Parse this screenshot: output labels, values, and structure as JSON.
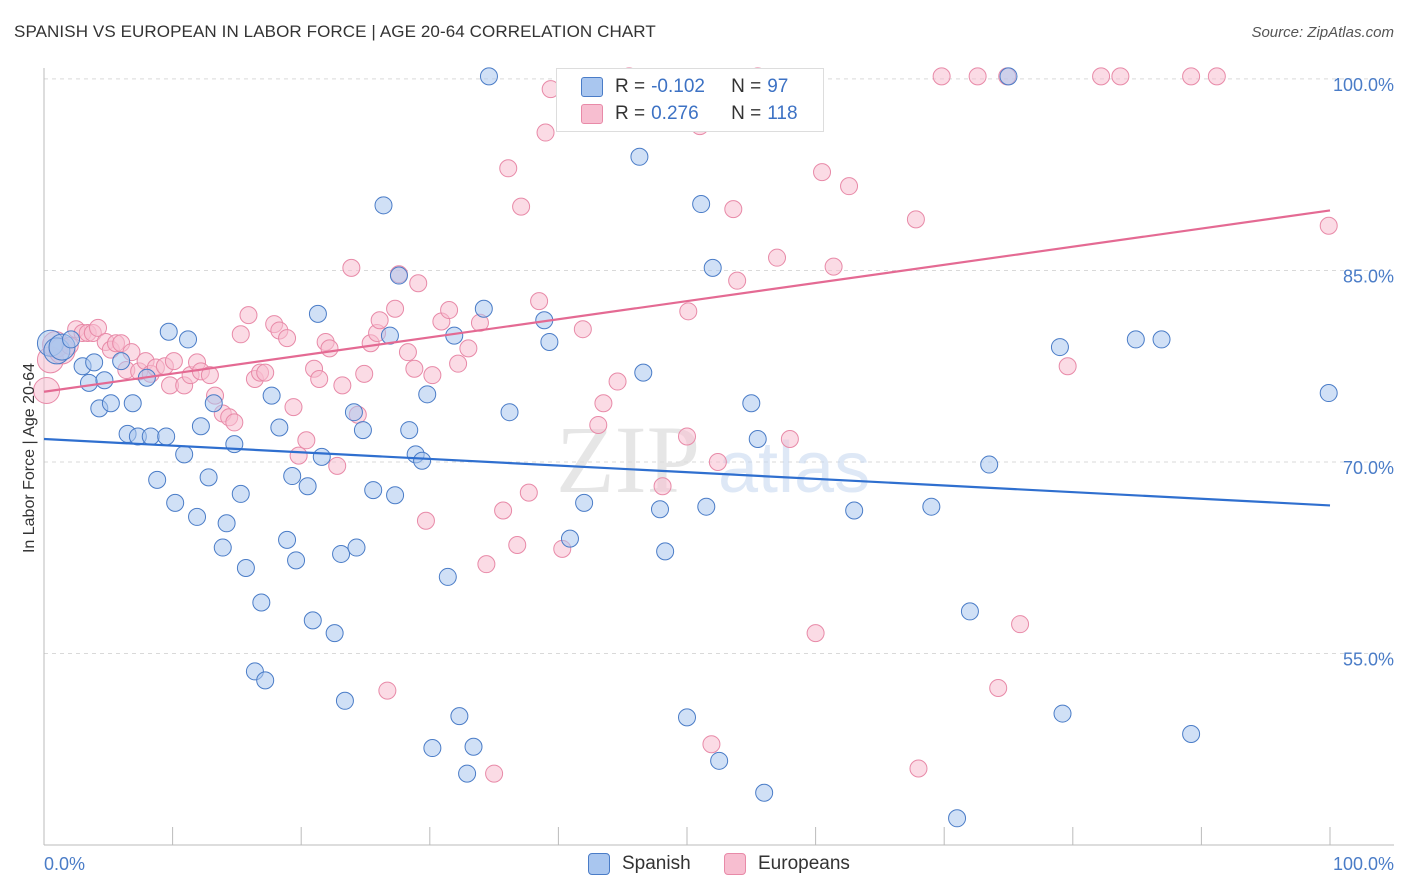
{
  "title": "SPANISH VS EUROPEAN IN LABOR FORCE | AGE 20-64 CORRELATION CHART",
  "source": "Source: ZipAtlas.com",
  "legend": {
    "r_label": "R =",
    "n_label": "N =",
    "spanish": {
      "r": "-0.102",
      "n": "97"
    },
    "europeans": {
      "r": "0.276",
      "n": "118"
    }
  },
  "bottom_legend": {
    "spanish": "Spanish",
    "europeans": "Europeans"
  },
  "colors": {
    "spanish_fill": "#a9c6ef",
    "spanish_stroke": "#4a7cc7",
    "spanish_line": "#2f6fcf",
    "europeans_fill": "#f7bed0",
    "europeans_stroke": "#e88aa8",
    "europeans_line": "#e46a93",
    "grid": "#d9d9d9",
    "tick_text": "#4a7cc7"
  },
  "chart_data": {
    "type": "scatter",
    "title": "SPANISH VS EUROPEAN IN LABOR FORCE | AGE 20-64 CORRELATION CHART",
    "xlabel": "",
    "ylabel": "In Labor Force | Age 20-64",
    "xlim": [
      0,
      100
    ],
    "ylim": [
      40,
      101
    ],
    "x_tick_labels": [
      "0.0%",
      "100.0%"
    ],
    "y_ticks": [
      55,
      70,
      85,
      100
    ],
    "y_tick_labels": [
      "55.0%",
      "70.0%",
      "85.0%",
      "100.0%"
    ],
    "grid": true,
    "series": [
      {
        "name": "Spanish",
        "trend": {
          "x": [
            0,
            100
          ],
          "y": [
            71.8,
            66.6
          ]
        },
        "points": [
          [
            0.5,
            79.3
          ],
          [
            1.0,
            78.7
          ],
          [
            1.4,
            79.0
          ],
          [
            2.1,
            79.6
          ],
          [
            3.0,
            77.5
          ],
          [
            3.5,
            76.2
          ],
          [
            3.9,
            77.8
          ],
          [
            4.3,
            74.2
          ],
          [
            4.7,
            76.4
          ],
          [
            5.2,
            74.6
          ],
          [
            6.0,
            77.9
          ],
          [
            6.5,
            72.2
          ],
          [
            6.9,
            74.6
          ],
          [
            7.3,
            72.0
          ],
          [
            8.0,
            76.6
          ],
          [
            8.3,
            72.0
          ],
          [
            8.8,
            68.6
          ],
          [
            9.5,
            72.0
          ],
          [
            9.7,
            80.2
          ],
          [
            10.2,
            66.8
          ],
          [
            10.9,
            70.6
          ],
          [
            11.2,
            79.6
          ],
          [
            11.9,
            65.7
          ],
          [
            12.2,
            72.8
          ],
          [
            12.8,
            68.8
          ],
          [
            13.2,
            74.6
          ],
          [
            13.9,
            63.3
          ],
          [
            14.2,
            65.2
          ],
          [
            14.8,
            71.4
          ],
          [
            15.3,
            67.5
          ],
          [
            15.7,
            61.7
          ],
          [
            16.4,
            53.6
          ],
          [
            16.9,
            59.0
          ],
          [
            17.2,
            52.9
          ],
          [
            17.7,
            75.2
          ],
          [
            18.3,
            72.7
          ],
          [
            18.9,
            63.9
          ],
          [
            19.3,
            68.9
          ],
          [
            19.6,
            62.3
          ],
          [
            20.5,
            68.1
          ],
          [
            20.9,
            57.6
          ],
          [
            21.3,
            81.6
          ],
          [
            21.6,
            70.4
          ],
          [
            22.6,
            56.6
          ],
          [
            23.1,
            62.8
          ],
          [
            23.4,
            51.3
          ],
          [
            24.1,
            73.9
          ],
          [
            24.3,
            63.3
          ],
          [
            24.8,
            72.5
          ],
          [
            25.6,
            67.8
          ],
          [
            26.4,
            90.1
          ],
          [
            26.9,
            79.9
          ],
          [
            27.3,
            67.4
          ],
          [
            27.6,
            84.6
          ],
          [
            28.4,
            72.5
          ],
          [
            28.9,
            70.6
          ],
          [
            29.4,
            70.1
          ],
          [
            29.8,
            75.3
          ],
          [
            30.2,
            47.6
          ],
          [
            31.4,
            61.0
          ],
          [
            31.9,
            79.9
          ],
          [
            32.3,
            50.1
          ],
          [
            32.9,
            45.6
          ],
          [
            33.4,
            47.7
          ],
          [
            34.2,
            82.0
          ],
          [
            34.6,
            100.2
          ],
          [
            36.2,
            73.9
          ],
          [
            38.9,
            81.1
          ],
          [
            39.3,
            79.4
          ],
          [
            40.9,
            64.0
          ],
          [
            42.0,
            66.8
          ],
          [
            46.3,
            93.9
          ],
          [
            46.6,
            77.0
          ],
          [
            47.9,
            66.3
          ],
          [
            48.3,
            63.0
          ],
          [
            50.0,
            50.0
          ],
          [
            51.1,
            90.2
          ],
          [
            51.5,
            66.5
          ],
          [
            52.0,
            85.2
          ],
          [
            52.5,
            46.6
          ],
          [
            55.0,
            74.6
          ],
          [
            55.5,
            71.8
          ],
          [
            56.0,
            44.1
          ],
          [
            63.0,
            66.2
          ],
          [
            69.0,
            66.5
          ],
          [
            71.0,
            42.1
          ],
          [
            72.0,
            58.3
          ],
          [
            73.5,
            69.8
          ],
          [
            75.0,
            100.2
          ],
          [
            79.0,
            79.0
          ],
          [
            79.2,
            50.3
          ],
          [
            84.9,
            79.6
          ],
          [
            86.9,
            79.6
          ],
          [
            89.2,
            48.7
          ],
          [
            99.9,
            75.4
          ]
        ]
      },
      {
        "name": "Europeans",
        "trend": {
          "x": [
            0,
            100
          ],
          "y": [
            75.5,
            89.7
          ]
        },
        "points": [
          [
            0.2,
            75.6
          ],
          [
            0.5,
            78.0
          ],
          [
            0.9,
            79.2
          ],
          [
            1.4,
            78.7
          ],
          [
            2.0,
            79.1
          ],
          [
            2.5,
            80.4
          ],
          [
            3.0,
            80.1
          ],
          [
            3.4,
            80.1
          ],
          [
            3.8,
            80.1
          ],
          [
            4.2,
            80.5
          ],
          [
            4.8,
            79.4
          ],
          [
            5.2,
            78.8
          ],
          [
            5.6,
            79.3
          ],
          [
            6.0,
            79.3
          ],
          [
            6.4,
            77.2
          ],
          [
            6.8,
            78.6
          ],
          [
            7.4,
            77.1
          ],
          [
            7.9,
            77.9
          ],
          [
            8.3,
            76.9
          ],
          [
            8.7,
            77.4
          ],
          [
            9.4,
            77.5
          ],
          [
            9.8,
            76.0
          ],
          [
            10.1,
            77.9
          ],
          [
            10.9,
            76.0
          ],
          [
            11.4,
            76.8
          ],
          [
            11.9,
            77.8
          ],
          [
            12.2,
            77.1
          ],
          [
            12.9,
            76.8
          ],
          [
            13.3,
            75.2
          ],
          [
            13.9,
            73.8
          ],
          [
            14.4,
            73.5
          ],
          [
            14.8,
            73.1
          ],
          [
            15.3,
            80.0
          ],
          [
            15.9,
            81.5
          ],
          [
            16.4,
            76.5
          ],
          [
            16.8,
            77.0
          ],
          [
            17.2,
            77.0
          ],
          [
            17.9,
            80.8
          ],
          [
            18.3,
            80.3
          ],
          [
            18.9,
            79.7
          ],
          [
            19.4,
            74.3
          ],
          [
            19.8,
            70.5
          ],
          [
            20.4,
            71.7
          ],
          [
            21.0,
            77.3
          ],
          [
            21.4,
            76.5
          ],
          [
            21.9,
            79.4
          ],
          [
            22.2,
            78.9
          ],
          [
            22.8,
            69.7
          ],
          [
            23.2,
            76.0
          ],
          [
            23.9,
            85.2
          ],
          [
            24.4,
            73.7
          ],
          [
            24.9,
            76.9
          ],
          [
            25.4,
            79.3
          ],
          [
            25.9,
            80.1
          ],
          [
            26.1,
            81.1
          ],
          [
            26.7,
            52.1
          ],
          [
            27.3,
            82.0
          ],
          [
            27.6,
            84.7
          ],
          [
            28.3,
            78.6
          ],
          [
            28.8,
            77.3
          ],
          [
            29.1,
            84.0
          ],
          [
            29.7,
            65.4
          ],
          [
            30.2,
            76.8
          ],
          [
            30.9,
            81.0
          ],
          [
            31.5,
            81.9
          ],
          [
            32.2,
            77.7
          ],
          [
            33.0,
            78.9
          ],
          [
            33.9,
            80.9
          ],
          [
            34.4,
            62.0
          ],
          [
            35.0,
            45.6
          ],
          [
            35.7,
            66.2
          ],
          [
            36.1,
            93.0
          ],
          [
            36.8,
            63.5
          ],
          [
            37.1,
            90.0
          ],
          [
            37.7,
            67.6
          ],
          [
            38.5,
            82.6
          ],
          [
            39.0,
            95.8
          ],
          [
            39.4,
            99.2
          ],
          [
            40.3,
            63.2
          ],
          [
            41.9,
            80.4
          ],
          [
            43.1,
            72.9
          ],
          [
            43.5,
            74.6
          ],
          [
            44.6,
            76.3
          ],
          [
            45.5,
            100.2
          ],
          [
            46.3,
            99.6
          ],
          [
            47.3,
            96.9
          ],
          [
            48.1,
            68.1
          ],
          [
            49.0,
            99.2
          ],
          [
            50.0,
            72.0
          ],
          [
            50.1,
            81.8
          ],
          [
            51.0,
            96.3
          ],
          [
            51.9,
            47.9
          ],
          [
            52.4,
            70.0
          ],
          [
            53.6,
            89.8
          ],
          [
            53.9,
            84.2
          ],
          [
            55.5,
            100.2
          ],
          [
            57.0,
            86.0
          ],
          [
            58.0,
            71.8
          ],
          [
            60.0,
            56.6
          ],
          [
            60.5,
            92.7
          ],
          [
            61.4,
            85.3
          ],
          [
            62.6,
            91.6
          ],
          [
            67.8,
            89.0
          ],
          [
            68.0,
            46.0
          ],
          [
            69.8,
            100.2
          ],
          [
            72.6,
            100.2
          ],
          [
            74.2,
            52.3
          ],
          [
            74.9,
            100.2
          ],
          [
            75.9,
            57.3
          ],
          [
            79.6,
            77.5
          ],
          [
            82.2,
            100.2
          ],
          [
            83.7,
            100.2
          ],
          [
            89.2,
            100.2
          ],
          [
            91.2,
            100.2
          ],
          [
            99.9,
            88.5
          ]
        ]
      }
    ]
  }
}
